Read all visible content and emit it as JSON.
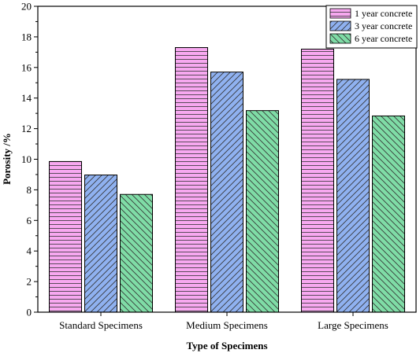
{
  "chart_data": {
    "type": "bar",
    "title": "",
    "xlabel": "Type of Specimens",
    "ylabel": "Porosity /%",
    "ylim": [
      0,
      20
    ],
    "yticks": [
      0,
      2,
      4,
      6,
      8,
      10,
      12,
      14,
      16,
      18,
      20
    ],
    "categories": [
      "Standard Specimens",
      "Medium Specimens",
      "Large Specimens"
    ],
    "series": [
      {
        "name": "1 year concrete",
        "values": [
          9.85,
          17.3,
          17.2
        ],
        "color": "#f7a8f0",
        "pattern": "horizontal-lines"
      },
      {
        "name": "3 year concrete",
        "values": [
          8.97,
          15.7,
          15.22
        ],
        "color": "#8fb1f0",
        "pattern": "forward-diagonal"
      },
      {
        "name": "6 year concrete",
        "values": [
          7.7,
          13.18,
          12.83
        ],
        "color": "#7fdca6",
        "pattern": "backward-diagonal"
      }
    ],
    "grid": false,
    "legend_position": "top-right"
  }
}
